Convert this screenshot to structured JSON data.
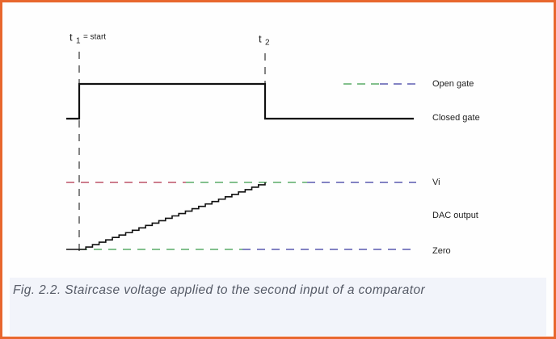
{
  "diagram": {
    "markers": [
      {
        "symbol": "t",
        "subscript": "1",
        "suffix": "= start"
      },
      {
        "symbol": "t",
        "subscript": "2"
      }
    ],
    "labels": {
      "open_gate": "Open gate",
      "closed_gate": "Closed gate",
      "vi": "Vi",
      "dac_output": "DAC output",
      "zero": "Zero"
    },
    "caption": "Fig. 2.2. Staircase voltage applied to the second input of a comparator"
  }
}
